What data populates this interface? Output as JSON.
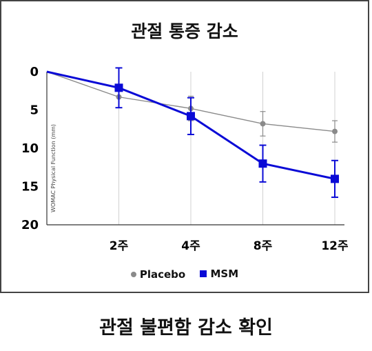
{
  "title": "관절 통증 감소",
  "caption": "관절 불편함 감소 확인",
  "chart_data": {
    "type": "line",
    "ylabel": "WOMAC Physical Function (mm)",
    "xlabel": "",
    "categories": [
      "",
      "2주",
      "4주",
      "8주",
      "12주"
    ],
    "ylim": [
      0,
      20
    ],
    "y_inverted": true,
    "yticks": [
      0,
      5,
      10,
      15,
      20
    ],
    "grid": "vertical",
    "legend_position": "bottom",
    "series": [
      {
        "name": "Placebo",
        "color": "#8a8a8a",
        "marker": "circle",
        "values": [
          0,
          3.3,
          4.8,
          6.8,
          7.8
        ],
        "error": [
          null,
          1.4,
          1.6,
          1.6,
          1.4
        ]
      },
      {
        "name": "MSM",
        "color": "#0a0ad6",
        "marker": "square",
        "values": [
          0,
          2.1,
          5.8,
          12,
          14
        ],
        "error": [
          null,
          2.6,
          2.4,
          2.4,
          2.4
        ]
      }
    ]
  }
}
